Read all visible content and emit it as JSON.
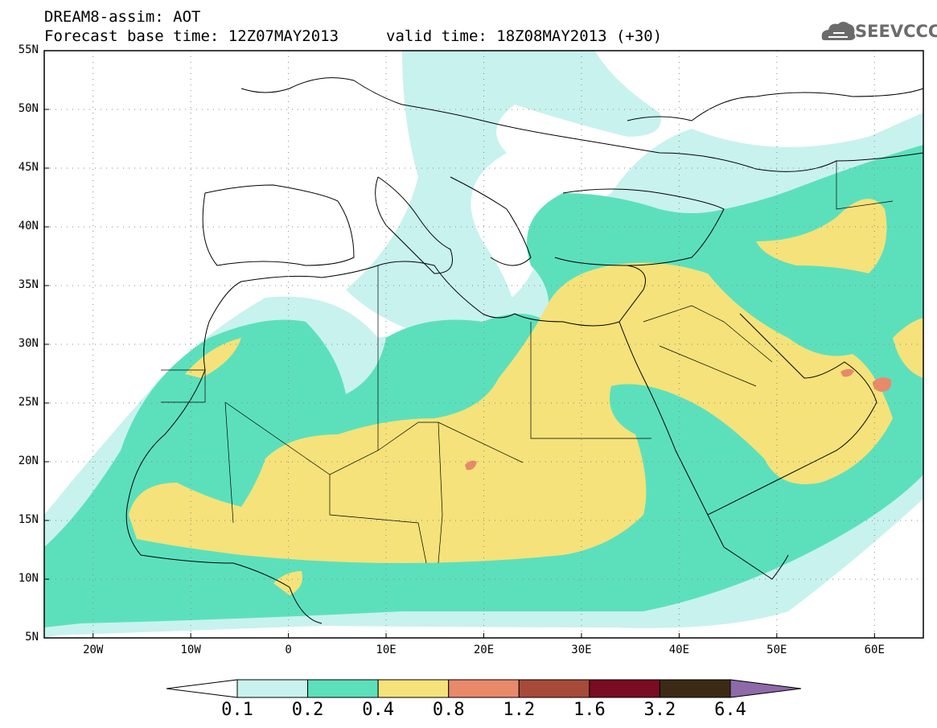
{
  "header": {
    "line1": "DREAM8-assim: AOT",
    "line2": "Forecast base time: 12Z07MAY2013",
    "line3": "valid time: 18Z08MAY2013 (+30)"
  },
  "logo": {
    "text": "SEEVCCC",
    "icon": "cloud-icon"
  },
  "map": {
    "variable": "AOT",
    "lon_range": [
      -25,
      65
    ],
    "lat_range": [
      5,
      55
    ],
    "lat_labels": [
      "55N",
      "50N",
      "45N",
      "40N",
      "35N",
      "30N",
      "25N",
      "20N",
      "15N",
      "10N",
      "5N"
    ],
    "lon_labels": [
      "20W",
      "10W",
      "0",
      "10E",
      "20E",
      "30E",
      "40E",
      "50E",
      "60E"
    ],
    "grid": "dotted"
  },
  "colorbar": {
    "levels": [
      "0.1",
      "0.2",
      "0.4",
      "0.8",
      "1.2",
      "1.6",
      "3.2",
      "6.4"
    ],
    "colors": [
      "#ffffff",
      "#c8f2ee",
      "#5ce0bc",
      "#f5e27a",
      "#e8896a",
      "#a84a3a",
      "#7a0b22",
      "#3d2a16",
      "#8e6aa8"
    ]
  }
}
